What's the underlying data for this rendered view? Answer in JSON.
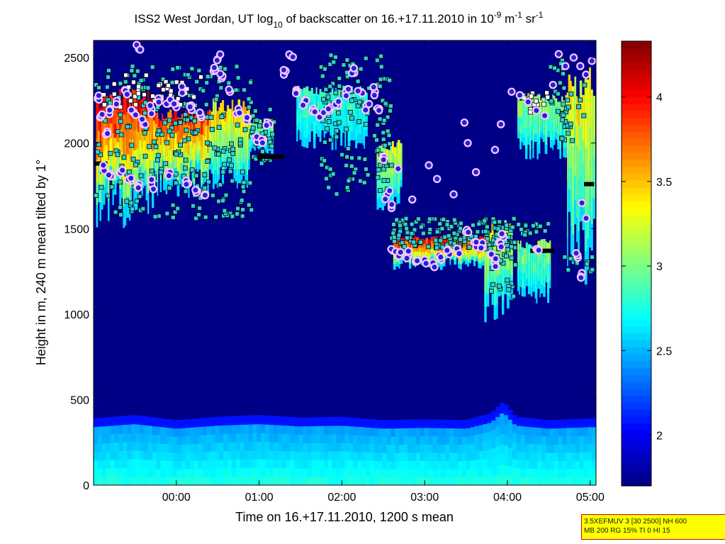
{
  "chart_data": {
    "type": "heatmap",
    "title": {
      "parts": [
        {
          "text": "ISS2 West Jordan, UT log"
        },
        {
          "text": "10",
          "sub": true
        },
        {
          "text": " of backscatter on 16.+17.11.2010 in 10"
        },
        {
          "text": "-9",
          "sup": true
        },
        {
          "text": " m"
        },
        {
          "text": "-1",
          "sup": true
        },
        {
          "text": " sr"
        },
        {
          "text": "-1",
          "sup": true
        }
      ]
    },
    "xlabel": "Time on 16.+17.11.2010, 1200 s mean",
    "ylabel": "Height in m, 240 m mean tilted by 1°",
    "x_range_hours": [
      -1.0,
      5.07
    ],
    "x_ticks": [
      {
        "label": "00:00",
        "value": 0
      },
      {
        "label": "01:00",
        "value": 1
      },
      {
        "label": "02:00",
        "value": 2
      },
      {
        "label": "03:00",
        "value": 3
      },
      {
        "label": "04:00",
        "value": 4
      },
      {
        "label": "05:00",
        "value": 5
      }
    ],
    "y_range": [
      0,
      2600
    ],
    "y_ticks": [
      0,
      500,
      1000,
      1500,
      2000,
      2500
    ],
    "colorbar": {
      "range": [
        1.7,
        4.33
      ],
      "ticks": [
        2,
        2.5,
        3,
        3.5,
        4
      ],
      "tick_labels": [
        "2",
        "2.5",
        "3",
        "3.5",
        "4"
      ],
      "colormap": "jet"
    },
    "background_level": 1.72,
    "surface_layer": {
      "top_height_m": [
        [
          -1.0,
          390
        ],
        [
          -0.5,
          410
        ],
        [
          0.0,
          380
        ],
        [
          0.5,
          400
        ],
        [
          1.0,
          410
        ],
        [
          1.5,
          395
        ],
        [
          2.0,
          400
        ],
        [
          2.5,
          380
        ],
        [
          3.0,
          385
        ],
        [
          3.5,
          380
        ],
        [
          3.8,
          420
        ],
        [
          3.95,
          490
        ],
        [
          4.1,
          400
        ],
        [
          4.5,
          380
        ],
        [
          5.0,
          390
        ]
      ],
      "level_range": [
        2.4,
        2.75
      ]
    },
    "aerosol_layers": [
      {
        "x_start": -0.97,
        "x_end": -0.28,
        "bottom_m": 1500,
        "top_m": 2320,
        "peak_level": 4.2
      },
      {
        "x_start": -0.28,
        "x_end": 0.42,
        "bottom_m": 1680,
        "top_m": 2200,
        "peak_level": 4.0
      },
      {
        "x_start": 0.42,
        "x_end": 0.88,
        "bottom_m": 1720,
        "top_m": 2260,
        "peak_level": 3.6
      },
      {
        "x_start": 0.88,
        "x_end": 1.15,
        "bottom_m": 1900,
        "top_m": 2150,
        "peak_level": 3.2
      },
      {
        "x_start": 1.45,
        "x_end": 2.3,
        "bottom_m": 1950,
        "top_m": 2340,
        "peak_level": 3.0
      },
      {
        "x_start": 2.42,
        "x_end": 2.72,
        "bottom_m": 1600,
        "top_m": 2020,
        "peak_level": 3.4
      },
      {
        "x_start": 2.62,
        "x_end": 3.75,
        "bottom_m": 1260,
        "top_m": 1460,
        "peak_level": 4.1
      },
      {
        "x_start": 3.72,
        "x_end": 4.05,
        "bottom_m": 940,
        "top_m": 1550,
        "peak_level": 3.4
      },
      {
        "x_start": 4.12,
        "x_end": 4.52,
        "bottom_m": 1060,
        "top_m": 1440,
        "peak_level": 3.2
      },
      {
        "x_start": 4.12,
        "x_end": 4.78,
        "bottom_m": 1900,
        "top_m": 2300,
        "peak_level": 3.3
      },
      {
        "x_start": 4.72,
        "x_end": 5.05,
        "bottom_m": 1160,
        "top_m": 2450,
        "peak_level": 3.5
      }
    ],
    "markers": {
      "circles_top_layer": [
        [
          -0.95,
          2260
        ],
        [
          -0.92,
          2150
        ],
        [
          -0.85,
          2050
        ],
        [
          -0.8,
          2200
        ],
        [
          -0.72,
          2240
        ],
        [
          -0.62,
          2310
        ],
        [
          -0.52,
          2180
        ],
        [
          -0.45,
          2550
        ],
        [
          -0.4,
          2110
        ],
        [
          -0.3,
          2200
        ],
        [
          -0.2,
          2260
        ],
        [
          -0.1,
          2230
        ],
        [
          0.0,
          2210
        ],
        [
          0.08,
          2300
        ],
        [
          0.18,
          2220
        ],
        [
          0.3,
          2150
        ],
        [
          0.45,
          2420
        ],
        [
          0.5,
          2490
        ],
        [
          0.55,
          2380
        ],
        [
          0.65,
          2300
        ],
        [
          0.75,
          2200
        ],
        [
          0.85,
          2130
        ],
        [
          0.95,
          2030
        ],
        [
          1.05,
          2020
        ],
        [
          1.1,
          2120
        ],
        [
          1.3,
          2400
        ],
        [
          1.38,
          2510
        ],
        [
          1.45,
          2310
        ],
        [
          1.55,
          2250
        ],
        [
          1.65,
          2200
        ],
        [
          1.75,
          2160
        ],
        [
          1.85,
          2190
        ],
        [
          1.95,
          2220
        ],
        [
          2.05,
          2300
        ],
        [
          2.15,
          2410
        ],
        [
          2.22,
          2300
        ],
        [
          2.3,
          2220
        ],
        [
          2.4,
          2300
        ],
        [
          2.45,
          2200
        ]
      ],
      "circles_low_layer": [
        [
          -0.88,
          1850
        ],
        [
          -0.8,
          1820
        ],
        [
          -0.68,
          1830
        ],
        [
          -0.55,
          1780
        ],
        [
          -0.45,
          1760
        ],
        [
          -0.3,
          1760
        ],
        [
          -0.1,
          1830
        ],
        [
          0.12,
          1780
        ],
        [
          0.25,
          1720
        ],
        [
          0.35,
          1700
        ],
        [
          2.5,
          1920
        ],
        [
          2.55,
          1700
        ],
        [
          2.6,
          1620
        ],
        [
          2.62,
          1370
        ],
        [
          2.7,
          1360
        ],
        [
          2.8,
          1340
        ],
        [
          2.9,
          1310
        ],
        [
          3.0,
          1320
        ],
        [
          3.1,
          1300
        ],
        [
          3.2,
          1320
        ],
        [
          3.3,
          1350
        ],
        [
          3.4,
          1380
        ],
        [
          3.5,
          1480
        ],
        [
          3.6,
          1420
        ],
        [
          3.7,
          1390
        ],
        [
          3.8,
          1350
        ],
        [
          3.85,
          1300
        ],
        [
          3.9,
          1420
        ],
        [
          3.95,
          1450
        ],
        [
          4.35,
          1380
        ],
        [
          4.85,
          1330
        ],
        [
          4.9,
          1240
        ]
      ],
      "circles_upper_right": [
        [
          2.68,
          1850
        ],
        [
          2.85,
          1670
        ],
        [
          3.15,
          1790
        ],
        [
          3.05,
          1870
        ],
        [
          3.35,
          1700
        ],
        [
          3.48,
          2120
        ],
        [
          3.52,
          2000
        ],
        [
          3.62,
          1830
        ],
        [
          3.85,
          1960
        ],
        [
          3.92,
          2110
        ],
        [
          4.05,
          2300
        ],
        [
          4.15,
          2280
        ],
        [
          4.25,
          2240
        ],
        [
          4.35,
          2190
        ],
        [
          4.45,
          2160
        ],
        [
          4.55,
          2340
        ],
        [
          4.62,
          2520
        ],
        [
          4.7,
          2450
        ],
        [
          4.8,
          2500
        ],
        [
          4.88,
          2450
        ],
        [
          4.95,
          2400
        ],
        [
          5.02,
          2480
        ],
        [
          4.9,
          1650
        ],
        [
          4.95,
          1560
        ]
      ],
      "squares_cyan_region_a": [
        -0.97,
        0.92,
        1560,
        2450
      ],
      "squares_cyan_region_b": [
        0.92,
        1.2,
        1880,
        2200
      ],
      "squares_cyan_region_c": [
        1.75,
        2.6,
        1700,
        2520
      ],
      "squares_cyan_region_d": [
        2.6,
        4.1,
        1380,
        1560
      ],
      "squares_cyan_region_e": [
        4.1,
        4.5,
        1450,
        1540
      ],
      "squares_cyan_region_f": [
        3.8,
        4.1,
        1100,
        1450
      ],
      "squares_cyan_region_g": [
        4.65,
        5.05,
        1240,
        1340
      ],
      "squares_cyan_region_h": [
        4.5,
        4.95,
        2000,
        2500
      ],
      "black_dash_segments": [
        [
          -1.0,
          -0.85,
          1880
        ],
        [
          1.0,
          1.3,
          1920
        ],
        [
          4.3,
          4.55,
          1370
        ],
        [
          4.95,
          5.05,
          1760
        ]
      ]
    }
  },
  "info_box": {
    "line1": "3.5XEFMUV 3 [30 2500] NH 600",
    "line2": "MB 200 RG 15% TI 0 HI 15"
  },
  "colors": {
    "border": "#d00000",
    "info_bg": "#ffff00",
    "circle_fill": "#2222dd",
    "circle_edge": "#ffc8ff",
    "square_fill": "#30d0d0"
  }
}
